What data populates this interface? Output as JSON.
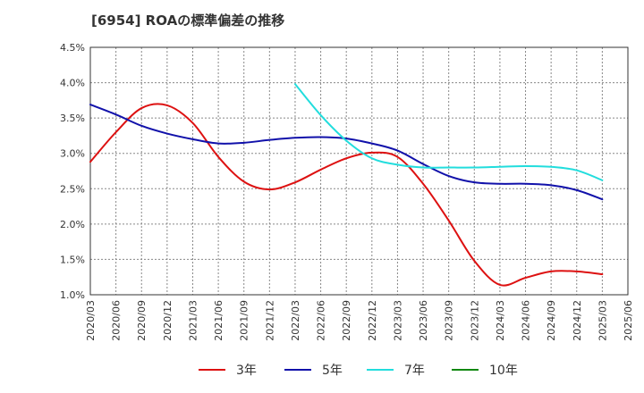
{
  "title": "[6954]  ROAの標準偏差の推移",
  "chart_data": {
    "type": "line",
    "title": "[6954]  ROAの標準偏差の推移",
    "xlabel": "",
    "ylabel": "",
    "ylim": [
      1.0,
      4.5
    ],
    "yticks": [
      "1.0%",
      "1.5%",
      "2.0%",
      "2.5%",
      "3.0%",
      "3.5%",
      "4.0%",
      "4.5%"
    ],
    "grid": true,
    "legend_position": "bottom",
    "x": [
      "2020/03",
      "2020/06",
      "2020/09",
      "2020/12",
      "2021/03",
      "2021/06",
      "2021/09",
      "2021/12",
      "2022/03",
      "2022/06",
      "2022/09",
      "2022/12",
      "2023/03",
      "2023/06",
      "2023/09",
      "2023/12",
      "2024/03",
      "2024/06",
      "2024/09",
      "2024/12",
      "2025/03",
      "2025/06"
    ],
    "series": [
      {
        "name": "3年",
        "color": "#dd1111",
        "values": [
          2.88,
          3.3,
          3.64,
          3.68,
          3.43,
          2.95,
          2.6,
          2.49,
          2.59,
          2.77,
          2.93,
          3.01,
          2.95,
          2.57,
          2.05,
          1.48,
          1.14,
          1.24,
          1.33,
          1.33,
          1.29,
          null
        ]
      },
      {
        "name": "5年",
        "color": "#1111aa",
        "values": [
          3.69,
          3.55,
          3.39,
          3.28,
          3.2,
          3.14,
          3.15,
          3.19,
          3.22,
          3.23,
          3.21,
          3.14,
          3.04,
          2.85,
          2.68,
          2.59,
          2.57,
          2.57,
          2.55,
          2.48,
          2.35,
          null
        ]
      },
      {
        "name": "7年",
        "color": "#22dddd",
        "values": [
          null,
          null,
          null,
          null,
          null,
          null,
          null,
          null,
          3.98,
          3.54,
          3.18,
          2.93,
          2.84,
          2.8,
          2.8,
          2.8,
          2.81,
          2.82,
          2.81,
          2.76,
          2.62,
          null
        ]
      },
      {
        "name": "10年",
        "color": "#118811",
        "values": [
          null,
          null,
          null,
          null,
          null,
          null,
          null,
          null,
          null,
          null,
          null,
          null,
          null,
          null,
          null,
          null,
          null,
          null,
          null,
          null,
          null,
          null
        ]
      }
    ]
  }
}
